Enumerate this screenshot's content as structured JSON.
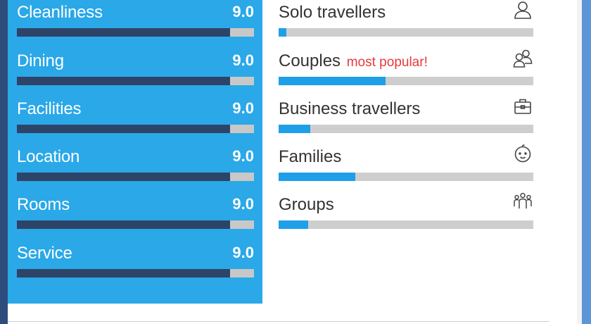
{
  "scores": [
    {
      "label": "Cleanliness",
      "value": "9.0",
      "fill": 0.9
    },
    {
      "label": "Dining",
      "value": "9.0",
      "fill": 0.9
    },
    {
      "label": "Facilities",
      "value": "9.0",
      "fill": 0.9
    },
    {
      "label": "Location",
      "value": "9.0",
      "fill": 0.9
    },
    {
      "label": "Rooms",
      "value": "9.0",
      "fill": 0.9
    },
    {
      "label": "Service",
      "value": "9.0",
      "fill": 0.9
    }
  ],
  "travellers": [
    {
      "label": "Solo travellers",
      "badge": "",
      "icon": "single-person-icon",
      "fill": 0.03
    },
    {
      "label": "Couples",
      "badge": "most popular!",
      "icon": "couple-icon",
      "fill": 0.42
    },
    {
      "label": "Business travellers",
      "badge": "",
      "icon": "briefcase-icon",
      "fill": 0.125
    },
    {
      "label": "Families",
      "badge": "",
      "icon": "baby-face-icon",
      "fill": 0.3
    },
    {
      "label": "Groups",
      "badge": "",
      "icon": "group-icon",
      "fill": 0.115
    }
  ],
  "colors": {
    "panel": "#2aa8e8",
    "score_fill": "#2d4468",
    "traveller_fill": "#1f9fe8",
    "track": "#c8c8c8",
    "popular": "#e8393c"
  }
}
